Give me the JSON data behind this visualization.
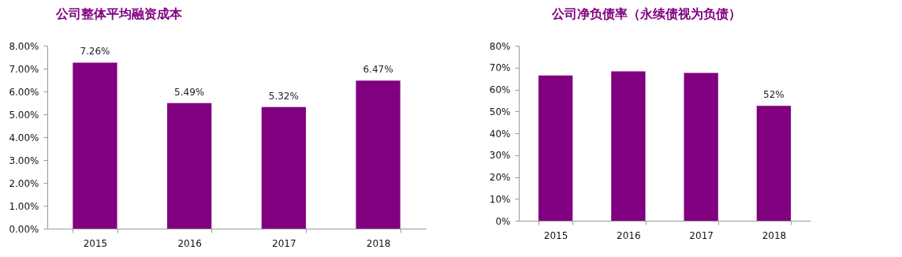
{
  "chart_data": [
    {
      "type": "bar",
      "title": "公司整体平均融资成本",
      "categories": [
        "2015",
        "2016",
        "2017",
        "2018"
      ],
      "color": "#800080",
      "values": [
        7.26,
        5.49,
        5.32,
        6.47
      ],
      "value_labels": [
        "7.26%",
        "5.49%",
        "5.32%",
        "6.47%"
      ],
      "ylim": [
        0,
        8
      ],
      "yticks": [
        {
          "value": 0,
          "label": "0.00%"
        },
        {
          "value": 1,
          "label": "1.00%"
        },
        {
          "value": 2,
          "label": "2.00%"
        },
        {
          "value": 3,
          "label": "3.00%"
        },
        {
          "value": 4,
          "label": "4.00%"
        },
        {
          "value": 5,
          "label": "5.00%"
        },
        {
          "value": 6,
          "label": "6.00%"
        },
        {
          "value": 7,
          "label": "7.00%"
        },
        {
          "value": 8,
          "label": "8.00%"
        }
      ],
      "grid": false
    },
    {
      "type": "bar",
      "title": "公司净负债率（永续债视为负债）",
      "categories": [
        "2015",
        "2016",
        "2017",
        "2018"
      ],
      "color": "#800080",
      "values": [
        66.4,
        68.3,
        67.6,
        52.5
      ],
      "value_labels": [
        null,
        null,
        null,
        "52%"
      ],
      "ylim": [
        0,
        80
      ],
      "yticks": [
        {
          "value": 0,
          "label": "0%"
        },
        {
          "value": 10,
          "label": "10%"
        },
        {
          "value": 20,
          "label": "20%"
        },
        {
          "value": 30,
          "label": "30%"
        },
        {
          "value": 40,
          "label": "40%"
        },
        {
          "value": 50,
          "label": "50%"
        },
        {
          "value": 60,
          "label": "60%"
        },
        {
          "value": 70,
          "label": "70%"
        },
        {
          "value": 80,
          "label": "80%"
        }
      ],
      "grid": false
    }
  ]
}
